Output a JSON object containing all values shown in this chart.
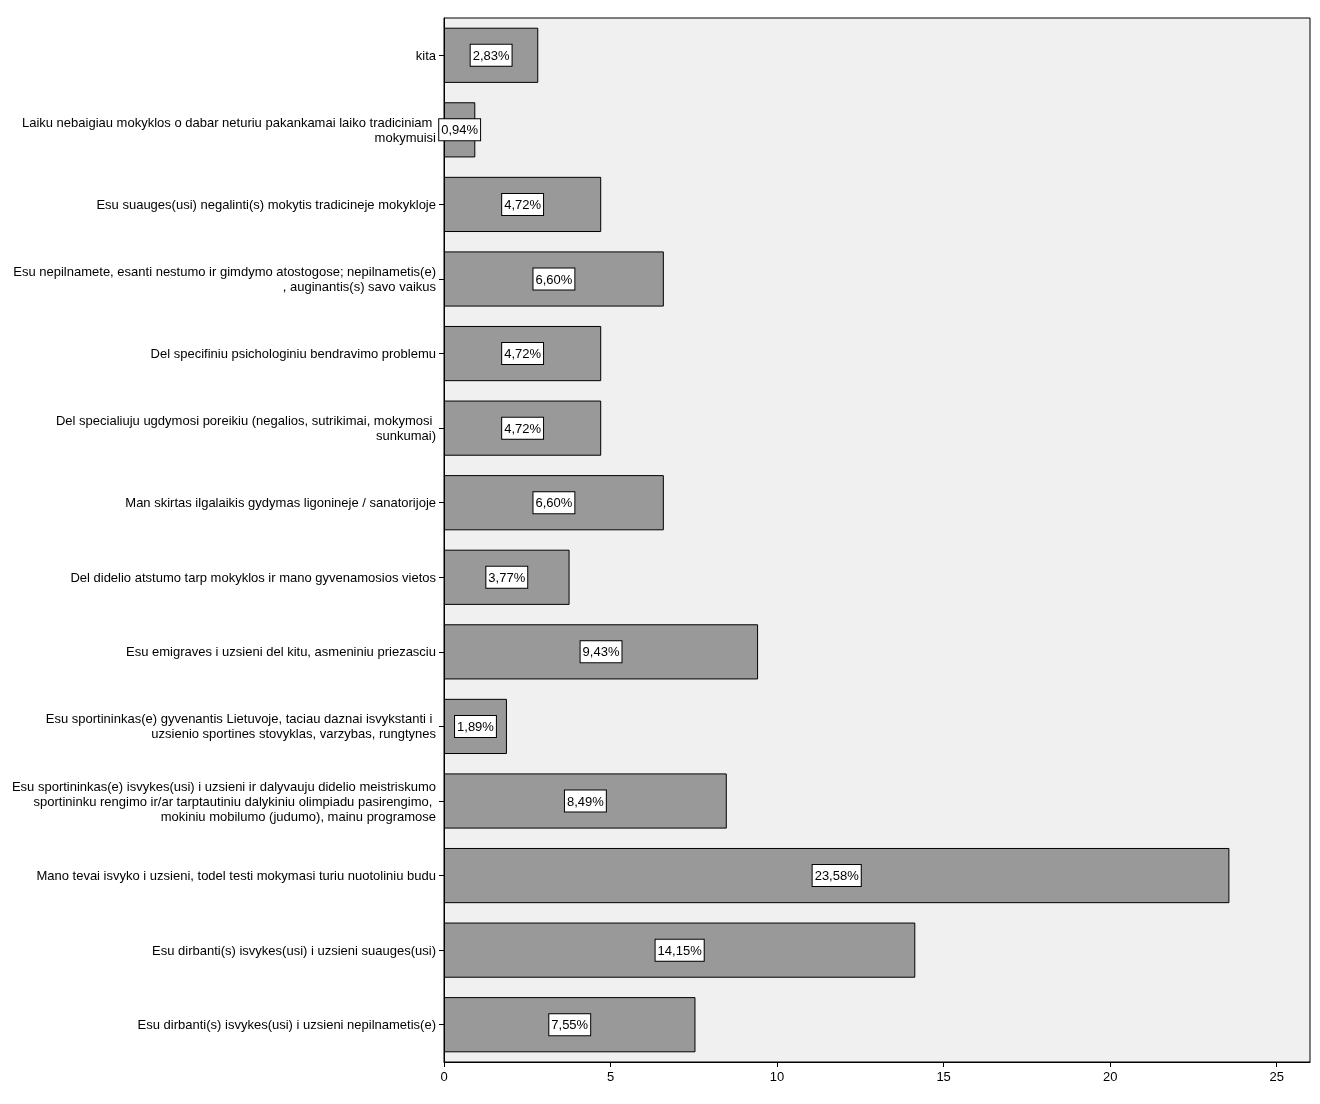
{
  "chart_data": {
    "type": "bar",
    "orientation": "horizontal",
    "categories": [
      "kita",
      "Laiku nebaigiau mokyklos o dabar neturiu pakankamai laiko tradiciniam mokymuisi",
      "Esu suauges(usi) negalinti(s) mokytis tradicineje mokykloje",
      "Esu nepilnamete, esanti nestumo ir gimdymo atostogose; nepilnametis(e), auginantis(s) savo vaikus",
      "Del specifiniu psichologiniu bendravimo problemu",
      "Del specialiuju ugdymosi poreikiu (negalios, sutrikimai, mokymosi sunkumai)",
      "Man skirtas ilgalaikis gydymas ligonineje / sanatorijoje",
      "Del didelio atstumo tarp mokyklos ir mano gyvenamosios vietos",
      "Esu emigraves i uzsieni del kitu, asmeniniu priezasciu",
      "Esu sportininkas(e) gyvenantis Lietuvoje, taciau daznai isvykstanti i uzsienio sportines stovyklas, varzybas, rungtynes",
      "Esu sportininkas(e) isvykes(usi) i uzsieni ir dalyvauju didelio meistriskumo sportininku rengimo ir/ar tarptautiniu dalykiniu olimpiadu pasirengimo, mokiniu mobilumo (judumo), mainu programose",
      "Mano tevai isvyko i uzsieni, todel testi mokymasi turiu nuotoliniu budu",
      "Esu dirbanti(s) isvykes(usi) i uzsieni suauges(usi)",
      "Esu dirbanti(s) isvykes(usi) i uzsieni nepilnametis(e)"
    ],
    "values": [
      2.83,
      0.94,
      4.72,
      6.6,
      4.72,
      4.72,
      6.6,
      3.77,
      9.43,
      1.89,
      8.49,
      23.58,
      14.15,
      7.55
    ],
    "value_labels": [
      "2,83%",
      "0,94%",
      "4,72%",
      "6,60%",
      "4,72%",
      "4,72%",
      "6,60%",
      "3,77%",
      "9,43%",
      "1,89%",
      "8,49%",
      "23,58%",
      "14,15%",
      "7,55%"
    ],
    "color": "#999999",
    "xlim": [
      0,
      26
    ],
    "xticks": [
      0,
      5,
      10,
      15,
      20,
      25
    ],
    "grid": false
  }
}
